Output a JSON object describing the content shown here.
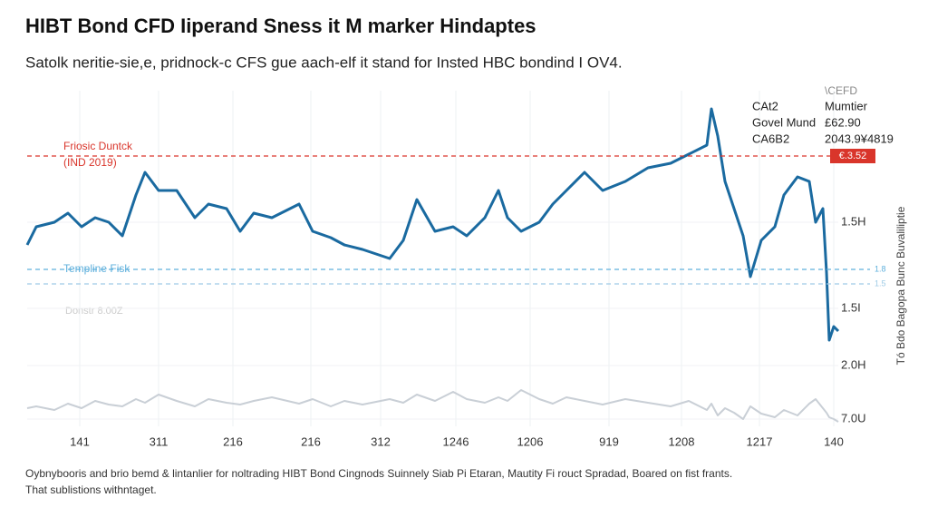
{
  "chart_data": {
    "type": "line",
    "title": "HIBT Bond CFD Iiperand Sness it M marker Hindaptes",
    "subtitle": "Satolk neritie-sie,e, pridnock-c CFS gue aach-elf it stand for Insted HBC bondind I OV4.",
    "x": [
      0,
      10,
      30,
      45,
      60,
      75,
      90,
      105,
      120,
      130,
      145,
      165,
      185,
      200,
      220,
      235,
      250,
      270,
      300,
      315,
      335,
      350,
      370,
      400,
      415,
      430,
      450,
      470,
      485,
      505,
      520,
      530,
      545,
      565,
      580,
      595,
      615,
      635,
      660,
      685,
      710,
      730,
      750,
      755,
      762,
      770,
      780,
      790,
      798,
      810,
      825,
      835,
      850,
      863,
      870,
      878,
      882,
      885,
      890,
      895
    ],
    "series": [
      {
        "color": "#1a6aa0",
        "values": [
          200,
          220,
          225,
          235,
          220,
          230,
          225,
          210,
          255,
          280,
          260,
          260,
          230,
          245,
          240,
          215,
          235,
          230,
          245,
          215,
          208,
          200,
          195,
          185,
          205,
          250,
          215,
          220,
          210,
          230,
          260,
          230,
          215,
          225,
          245,
          260,
          280,
          260,
          270,
          285,
          290,
          300,
          310,
          350,
          320,
          270,
          240,
          210,
          165,
          205,
          220,
          255,
          275,
          270,
          225,
          240,
          170,
          95,
          110,
          105
        ]
      },
      {
        "color": "#c9cfd6",
        "values": [
          20,
          22,
          18,
          25,
          20,
          28,
          24,
          22,
          30,
          26,
          35,
          28,
          22,
          30,
          26,
          24,
          28,
          32,
          25,
          30,
          22,
          28,
          24,
          30,
          26,
          35,
          28,
          38,
          30,
          26,
          32,
          28,
          40,
          30,
          25,
          32,
          28,
          24,
          30,
          26,
          22,
          28,
          18,
          25,
          12,
          20,
          15,
          8,
          22,
          14,
          10,
          18,
          12,
          25,
          30,
          20,
          15,
          10,
          8,
          5
        ]
      }
    ],
    "xlim": [
      0,
      895
    ],
    "ylim": [
      0,
      370
    ],
    "xticks": [
      {
        "value": 58,
        "label": "141"
      },
      {
        "value": 145,
        "label": "311"
      },
      {
        "value": 227,
        "label": "216"
      },
      {
        "value": 313,
        "label": "216"
      },
      {
        "value": 390,
        "label": "312"
      },
      {
        "value": 473,
        "label": "1246"
      },
      {
        "value": 555,
        "label": "1206"
      },
      {
        "value": 642,
        "label": "919"
      },
      {
        "value": 722,
        "label": "1208"
      },
      {
        "value": 808,
        "label": "1217"
      },
      {
        "value": 890,
        "label": "140"
      }
    ],
    "yticks": [
      {
        "value": 8,
        "label": "7.0U"
      },
      {
        "value": 67,
        "label": "2.0H"
      },
      {
        "value": 130,
        "label": "1.5I"
      },
      {
        "value": 225,
        "label": "1.5H"
      }
    ],
    "grid": true,
    "reference_lines": [
      {
        "value": 298,
        "color": "#d9352b",
        "label": "Friosic Duntck",
        "sublabel": "(IND 2019)",
        "tag": "€.3.52"
      },
      {
        "value": 173,
        "color": "#5fb0dc",
        "label": "Templine Fisk",
        "tag": "1.8"
      },
      {
        "value": 157,
        "color": "#9fcbe6",
        "tag": "1.5"
      }
    ],
    "annotation": "Donstr 8.00Z",
    "legend": {
      "title": "\\CEFD",
      "rows": [
        [
          "CAt2",
          "Mumtier"
        ],
        [
          "Govel Mund",
          "£62.90"
        ],
        [
          "CA6B2",
          "2043.9¥4819"
        ]
      ]
    },
    "side_label": "Tó Bdo Bagopa Bunc Buvaliliptie",
    "footnote": [
      "Oybnybooris and brio bemd & lintanlier for noltrading HIBT Bond Cingnods Suinnely Siab Pi Etaran, Mautity Fi rouct Spradad, Boared on fist frants.",
      "That sublistions withntaget."
    ]
  }
}
